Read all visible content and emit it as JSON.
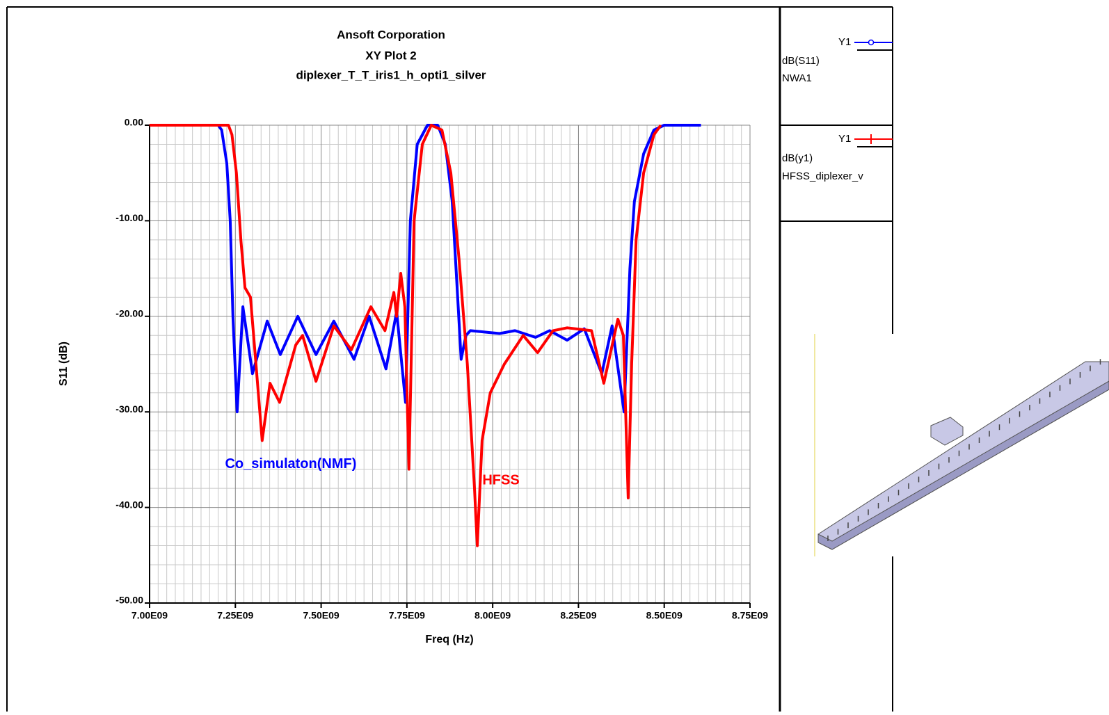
{
  "chart_data": {
    "type": "line",
    "title": "Ansoft Corporation",
    "subtitle": "XY Plot 2",
    "design": "diplexer_T_T_iris1_h_opti1_silver",
    "x_label": "Freq (Hz)",
    "y_label": "S11 (dB)",
    "xlim": [
      7000000000,
      8750000000
    ],
    "ylim": [
      -50,
      0
    ],
    "xticks": [
      {
        "value": 7000000000,
        "label": "7.00E09"
      },
      {
        "value": 7250000000,
        "label": "7.25E09"
      },
      {
        "value": 7500000000,
        "label": "7.50E09"
      },
      {
        "value": 7750000000,
        "label": "7.75E09"
      },
      {
        "value": 8000000000,
        "label": "8.00E09"
      },
      {
        "value": 8250000000,
        "label": "8.25E09"
      },
      {
        "value": 8500000000,
        "label": "8.50E09"
      },
      {
        "value": 8750000000,
        "label": "8.75E09"
      }
    ],
    "yticks": [
      {
        "value": 0,
        "label": "0.00"
      },
      {
        "value": -10,
        "label": "-10.00"
      },
      {
        "value": -20,
        "label": "-20.00"
      },
      {
        "value": -30,
        "label": "-30.00"
      },
      {
        "value": -40,
        "label": "-40.00"
      },
      {
        "value": -50,
        "label": "-50.00"
      }
    ],
    "grid": true,
    "series": [
      {
        "name": "dB(S11)",
        "axis_name": "Y1",
        "source": "NWA1",
        "color": "#0000ff",
        "x": [
          7000000000,
          7200000000,
          7210000000,
          7225000000,
          7235000000,
          7243000000,
          7255000000,
          7272000000,
          7300000000,
          7343000000,
          7381000000,
          7432000000,
          7485000000,
          7537000000,
          7596000000,
          7640000000,
          7689000000,
          7720000000,
          7746000000,
          7760000000,
          7780000000,
          7810000000,
          7840000000,
          7862000000,
          7882000000,
          7898000000,
          7908000000,
          7922000000,
          7935000000,
          8020000000,
          8065000000,
          8125000000,
          8166000000,
          8217000000,
          8267000000,
          8318000000,
          8348000000,
          8383000000,
          8400000000,
          8413000000,
          8440000000,
          8470000000,
          8500000000,
          8607000000
        ],
        "values": [
          0,
          0,
          -0.5,
          -4,
          -10,
          -20,
          -30,
          -19,
          -26,
          -20.5,
          -24,
          -20,
          -24,
          -20.5,
          -24.5,
          -20,
          -25.5,
          -19.5,
          -29,
          -10,
          -2,
          0,
          0,
          -2,
          -8,
          -18,
          -24.5,
          -22,
          -21.5,
          -21.8,
          -21.5,
          -22.2,
          -21.5,
          -22.5,
          -21.3,
          -26,
          -21,
          -30,
          -15,
          -8,
          -3,
          -0.5,
          0,
          0
        ]
      },
      {
        "name": "dB(y1)",
        "axis_name": "Y1",
        "source": "HFSS_diplexer_v",
        "color": "#ff0000",
        "x": [
          7000000000,
          7230000000,
          7240000000,
          7253000000,
          7266000000,
          7278000000,
          7294000000,
          7310000000,
          7328000000,
          7351000000,
          7379000000,
          7426000000,
          7446000000,
          7485000000,
          7537000000,
          7588000000,
          7645000000,
          7686000000,
          7712000000,
          7720000000,
          7732000000,
          7744000000,
          7756000000,
          7771000000,
          7795000000,
          7821000000,
          7852000000,
          7878000000,
          7902000000,
          7926000000,
          7947000000,
          7955000000,
          7969000000,
          7993000000,
          8034000000,
          8089000000,
          8131000000,
          8176000000,
          8217000000,
          8288000000,
          8324000000,
          8365000000,
          8381000000,
          8395000000,
          8405000000,
          8418000000,
          8440000000,
          8470000000,
          8490000000
        ],
        "values": [
          0,
          0,
          -1,
          -5,
          -12,
          -17,
          -18,
          -25,
          -33,
          -27,
          -29,
          -23,
          -22,
          -26.8,
          -21,
          -23.5,
          -19,
          -21.5,
          -17.5,
          -20,
          -15.5,
          -19,
          -36,
          -10,
          -2,
          0,
          -0.5,
          -5,
          -14,
          -25,
          -38,
          -44,
          -33,
          -28,
          -25,
          -22,
          -23.8,
          -21.5,
          -21.2,
          -21.5,
          -27,
          -20.3,
          -22,
          -39,
          -25,
          -12,
          -5,
          -1,
          0
        ]
      }
    ],
    "annotations": [
      {
        "text": "Co_simulaton(NMF)",
        "color": "#0000ff",
        "x": 7220000000,
        "y": -35.5
      },
      {
        "text": "HFSS",
        "color": "#ff0000",
        "x": 7970000000,
        "y": -37.2
      }
    ]
  }
}
